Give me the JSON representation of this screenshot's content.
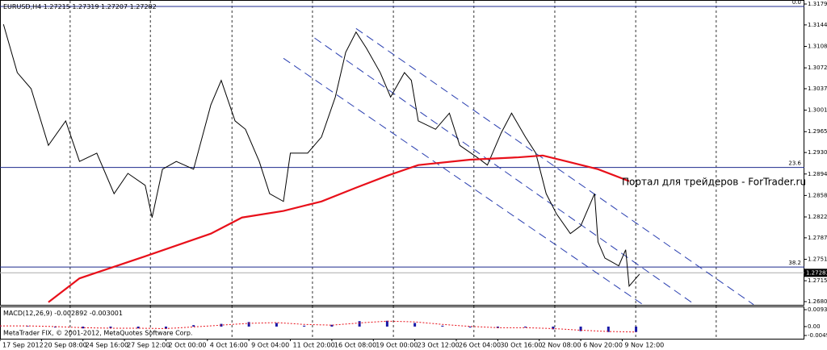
{
  "chart_data": [
    {
      "type": "line",
      "title": "EURUSD,H4",
      "header_values": [
        1.27215,
        1.27319,
        1.27207,
        1.27282
      ],
      "watermark": "Портал для трейдеров - ForTrader.ru",
      "xlim": [
        0,
        232.7
      ],
      "ylim": [
        1.268,
        1.3179
      ],
      "yticks": [
        {
          "value": 1.3179,
          "label": "1.31790"
        },
        {
          "value": 1.3144,
          "label": "1.31440"
        },
        {
          "value": 1.3108,
          "label": "1.31080"
        },
        {
          "value": 1.3072,
          "label": "1.30720"
        },
        {
          "value": 1.3037,
          "label": "1.30370"
        },
        {
          "value": 1.3001,
          "label": "1.30010"
        },
        {
          "value": 1.2965,
          "label": "1.29650"
        },
        {
          "value": 1.293,
          "label": "1.29300"
        },
        {
          "value": 1.2894,
          "label": "1.28940"
        },
        {
          "value": 1.2858,
          "label": "1.28580"
        },
        {
          "value": 1.2822,
          "label": "1.28220"
        },
        {
          "value": 1.2787,
          "label": "1.27870"
        },
        {
          "value": 1.2751,
          "label": "1.27510"
        },
        {
          "value": 1.2715,
          "label": "1.27150"
        },
        {
          "value": 1.268,
          "label": "1.26800"
        }
      ],
      "xticks": [
        {
          "value": 0,
          "label": "17 Sep 2012"
        },
        {
          "value": 12,
          "label": "20 Sep 08:00"
        },
        {
          "value": 24,
          "label": "24 Sep 16:00"
        },
        {
          "value": 36,
          "label": "27 Sep 12:00"
        },
        {
          "value": 48,
          "label": "2 Oct 00:00"
        },
        {
          "value": 60,
          "label": "4 Oct 16:00"
        },
        {
          "value": 72,
          "label": "9 Oct 04:00"
        },
        {
          "value": 84,
          "label": "11 Oct 20:00"
        },
        {
          "value": 96,
          "label": "16 Oct 08:00"
        },
        {
          "value": 108,
          "label": "19 Oct 00:00"
        },
        {
          "value": 120,
          "label": "23 Oct 12:00"
        },
        {
          "value": 132,
          "label": "26 Oct 04:00"
        },
        {
          "value": 144,
          "label": "30 Oct 16:00"
        },
        {
          "value": 156,
          "label": "2 Nov 08:00"
        },
        {
          "value": 168,
          "label": "6 Nov 20:00"
        },
        {
          "value": 180,
          "label": "9 Nov 12:00"
        }
      ],
      "xgrid": [
        20.3,
        43.5,
        67.1,
        90.4,
        113.8,
        137.1,
        160.5,
        183.9,
        207.2
      ],
      "grid": true,
      "series": [
        {
          "color": "#000000",
          "x": [
            1,
            5,
            9,
            14,
            19,
            23,
            28,
            33,
            37,
            42,
            44,
            47,
            51,
            56,
            61,
            64,
            68,
            71,
            75,
            78,
            82,
            84,
            89,
            93,
            97,
            100,
            103,
            106,
            110,
            113,
            117,
            119,
            121,
            126,
            130,
            133,
            138,
            141,
            145,
            148,
            152,
            155,
            158,
            161,
            165,
            168,
            172,
            173,
            175,
            179,
            181,
            182,
            185
          ],
          "values": [
            1.3145,
            1.3064,
            1.3037,
            1.2942,
            1.2983,
            1.2915,
            1.2929,
            1.2861,
            1.2895,
            1.2875,
            1.2821,
            1.2902,
            1.2915,
            1.2902,
            1.301,
            1.3051,
            1.2983,
            1.2969,
            1.2915,
            1.2861,
            1.2848,
            1.2929,
            1.2929,
            1.2956,
            1.3023,
            1.3098,
            1.3132,
            1.3105,
            1.3064,
            1.3023,
            1.3064,
            1.3051,
            1.2983,
            1.2969,
            1.2996,
            1.2942,
            1.2922,
            1.2909,
            1.2963,
            1.2996,
            1.2956,
            1.2929,
            1.2861,
            1.2827,
            1.2794,
            1.2807,
            1.2861,
            1.278,
            1.2753,
            1.274,
            1.2767,
            1.2706,
            1.2726
          ]
        },
        {
          "color": "#e8101a",
          "x": [
            14,
            23,
            42,
            61,
            70,
            82,
            93,
            103,
            112,
            121,
            136,
            150,
            157,
            164,
            173,
            182
          ],
          "values": [
            1.2679,
            1.2719,
            1.2756,
            1.2794,
            1.2821,
            1.2832,
            1.2848,
            1.2871,
            1.2891,
            1.2909,
            1.2918,
            1.2922,
            1.2925,
            1.2915,
            1.2902,
            1.2882
          ]
        }
      ],
      "channels": [
        {
          "color": "#2a3fb0",
          "x": [
            103,
            218
          ],
          "values": [
            1.3138,
            1.2675
          ]
        },
        {
          "color": "#2a3fb0",
          "x": [
            91,
            201
          ],
          "values": [
            1.3122,
            1.2675
          ]
        },
        {
          "color": "#2a3fb0",
          "x": [
            82,
            186
          ],
          "values": [
            1.3088,
            1.2675
          ]
        }
      ],
      "levels": [
        {
          "label": "0.0",
          "value": 1.3175
        },
        {
          "label": "23.6",
          "value": 1.2905
        },
        {
          "label": "38.2",
          "value": 1.2738
        }
      ],
      "level_color": "#1c2a8c",
      "current_price": 1.27283
    },
    {
      "type": "bar",
      "title": "MACD(12,26,9)",
      "header_values": [
        -0.002892,
        -0.003001
      ],
      "footer": "MetaTrader FIX, © 2001-2012, MetaQuotes Software Corp.",
      "xlim": [
        0,
        232.7
      ],
      "ylim": [
        -0.00491,
        0.00933
      ],
      "yticks": [
        0.00933,
        {
          "value": 0,
          "label": "0.00"
        },
        -0.00491
      ],
      "x": [
        0,
        8,
        16,
        24,
        32,
        40,
        48,
        56,
        64,
        72,
        80,
        88,
        96,
        104,
        112,
        120,
        128,
        136,
        144,
        152,
        160,
        168,
        176,
        184
      ],
      "series": [
        {
          "color": "#1a1aa8",
          "values": [
            0.0005,
            0.0003,
            -0.0005,
            -0.001,
            -0.0008,
            -0.001,
            -0.0012,
            0.0008,
            0.0015,
            0.0025,
            0.002,
            0.0005,
            0.001,
            0.003,
            0.0032,
            0.002,
            0.0005,
            -0.0005,
            -0.0008,
            -0.0005,
            -0.0015,
            -0.0025,
            -0.003,
            -0.003
          ]
        },
        {
          "color": "#e8101a",
          "values": [
            0.0004,
            0.0004,
            0,
            -0.0006,
            -0.0009,
            -0.0009,
            -0.0011,
            -0.0002,
            0.0008,
            0.0018,
            0.0022,
            0.0012,
            0.0008,
            0.002,
            0.003,
            0.0026,
            0.0012,
            0.0001,
            -0.0006,
            -0.0006,
            -0.0011,
            -0.002,
            -0.0027,
            -0.003
          ]
        }
      ]
    }
  ]
}
